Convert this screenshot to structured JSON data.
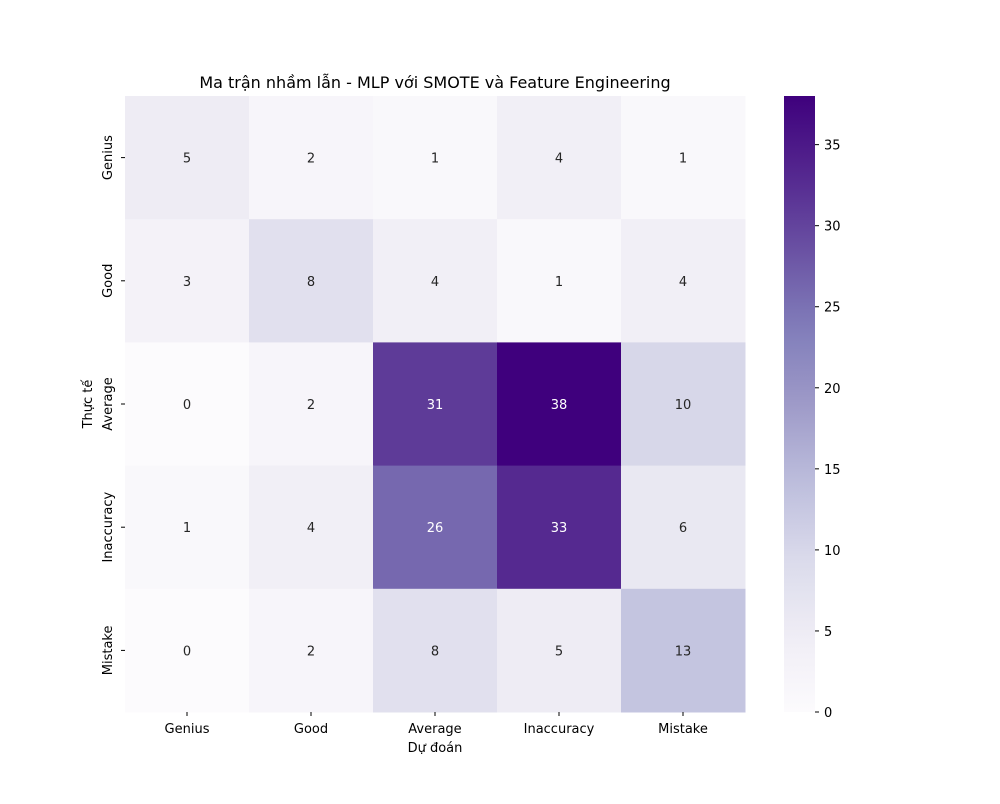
{
  "chart_data": {
    "type": "heatmap",
    "title": "Ma trận nhầm lẫn - MLP với SMOTE và Feature Engineering",
    "xlabel": "Dự đoán",
    "ylabel": "Thực tế",
    "x_categories": [
      "Genius",
      "Good",
      "Average",
      "Inaccuracy",
      "Mistake"
    ],
    "y_categories": [
      "Genius",
      "Good",
      "Average",
      "Inaccuracy",
      "Mistake"
    ],
    "values": [
      [
        5,
        2,
        1,
        4,
        1
      ],
      [
        3,
        8,
        4,
        1,
        4
      ],
      [
        0,
        2,
        31,
        38,
        10
      ],
      [
        1,
        4,
        26,
        33,
        6
      ],
      [
        0,
        2,
        8,
        5,
        13
      ]
    ],
    "colormap": "Purples",
    "colorbar": {
      "min": 0,
      "max": 38,
      "ticks": [
        0,
        5,
        10,
        15,
        20,
        25,
        30,
        35
      ]
    },
    "colors": {
      "low": "#fcfbfd",
      "high": "#3f007d",
      "text_dark": "#262626",
      "text_light": "#ffffff"
    }
  }
}
